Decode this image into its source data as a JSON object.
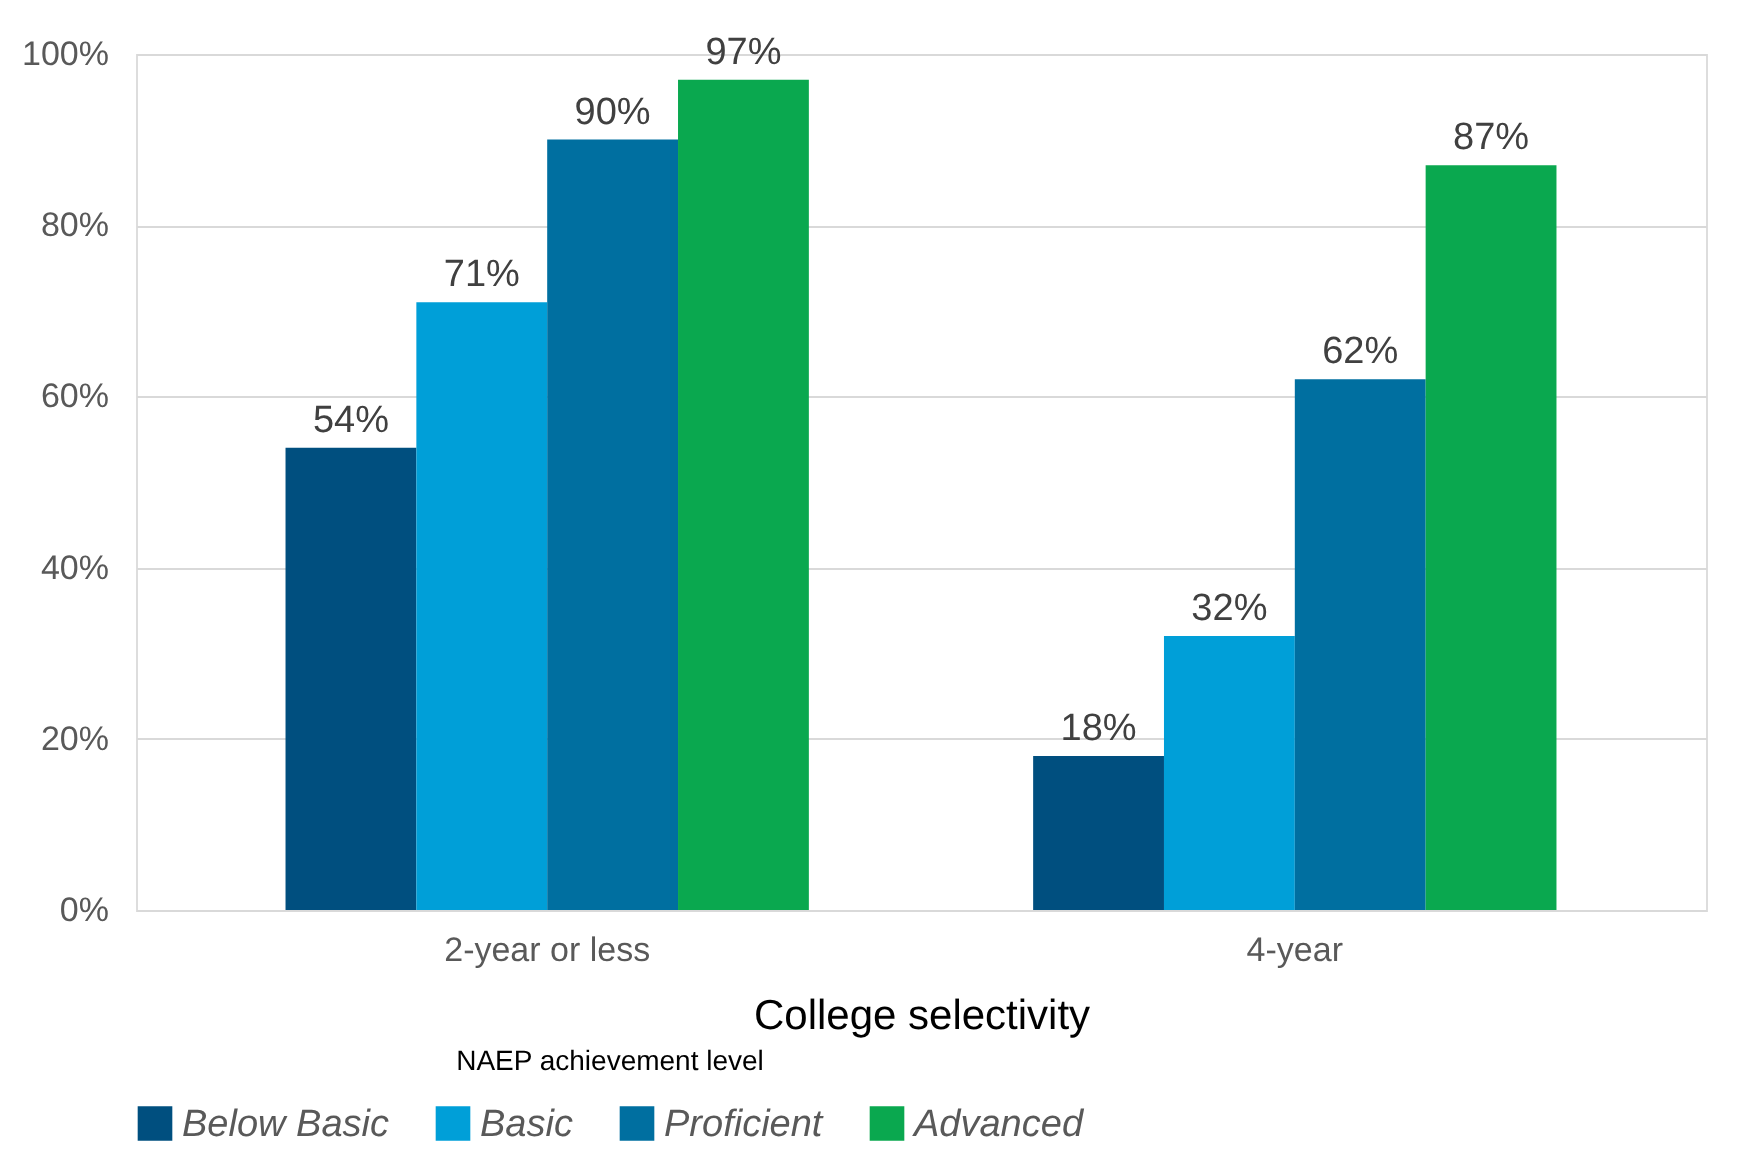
{
  "chart_data": {
    "type": "bar",
    "categories": [
      "2-year or less",
      "4-year"
    ],
    "xlabel": "College selectivity",
    "legend_title": "NAEP achievement level",
    "series": [
      {
        "name": "Below Basic",
        "color": "#004f7f",
        "values": [
          54,
          18
        ],
        "value_labels": [
          "54%",
          "18%"
        ]
      },
      {
        "name": "Basic",
        "color": "#009fd8",
        "values": [
          71,
          32
        ],
        "value_labels": [
          "71%",
          "32%"
        ]
      },
      {
        "name": "Proficient",
        "color": "#006fa0",
        "values": [
          90,
          62
        ],
        "value_labels": [
          "90%",
          "62%"
        ]
      },
      {
        "name": "Advanced",
        "color": "#0aa84f",
        "values": [
          97,
          87
        ],
        "value_labels": [
          "97%",
          "87%"
        ]
      }
    ],
    "ylim": [
      0,
      100
    ],
    "yticks": [
      {
        "value": 0,
        "label": "0%"
      },
      {
        "value": 20,
        "label": "20%"
      },
      {
        "value": 40,
        "label": "40%"
      },
      {
        "value": 60,
        "label": "60%"
      },
      {
        "value": 80,
        "label": "80%"
      },
      {
        "value": 100,
        "label": "100%"
      }
    ],
    "grid": "y",
    "legend": "bottom"
  }
}
